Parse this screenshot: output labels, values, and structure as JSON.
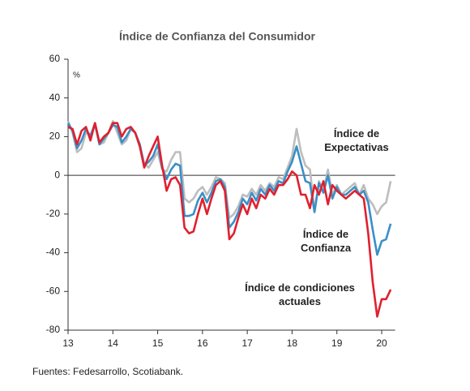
{
  "chart_data": {
    "type": "line",
    "title": "Índice de Confianza del Consumidor",
    "y_label": "%",
    "source": "Fuentes: Fedesarrollo, Scotiabank.",
    "xlim": [
      13,
      20.3
    ],
    "xticks": [
      13,
      14,
      15,
      16,
      17,
      18,
      19,
      20
    ],
    "ylim": [
      -80,
      60
    ],
    "yticks": [
      -80,
      -60,
      -40,
      -20,
      0,
      20,
      40,
      60
    ],
    "x": [
      13.0,
      13.1,
      13.2,
      13.3,
      13.4,
      13.5,
      13.6,
      13.7,
      13.8,
      13.9,
      14.0,
      14.1,
      14.2,
      14.3,
      14.4,
      14.5,
      14.6,
      14.7,
      14.8,
      14.9,
      15.0,
      15.1,
      15.2,
      15.3,
      15.4,
      15.5,
      15.6,
      15.7,
      15.8,
      15.9,
      16.0,
      16.1,
      16.2,
      16.3,
      16.4,
      16.5,
      16.6,
      16.7,
      16.8,
      16.9,
      17.0,
      17.1,
      17.2,
      17.3,
      17.4,
      17.5,
      17.6,
      17.7,
      17.8,
      17.9,
      18.0,
      18.1,
      18.2,
      18.3,
      18.4,
      18.5,
      18.6,
      18.7,
      18.8,
      18.9,
      19.0,
      19.1,
      19.2,
      19.3,
      19.4,
      19.5,
      19.6,
      19.7,
      19.8,
      19.9,
      20.0,
      20.1,
      20.2
    ],
    "series": [
      {
        "name": "Índice de Expectativas",
        "color": "#bdbdbd",
        "label": "Índice de\nExpectativas",
        "values": [
          28,
          22,
          12,
          14,
          22,
          21,
          26,
          16,
          17,
          22,
          28,
          22,
          16,
          18,
          24,
          22,
          16,
          6,
          4,
          8,
          12,
          3,
          2,
          8,
          12,
          12,
          -12,
          -14,
          -12,
          -8,
          -6,
          -10,
          -6,
          -1,
          -2,
          -4,
          -22,
          -20,
          -16,
          -10,
          -11,
          -7,
          -10,
          -5,
          -8,
          -4,
          -6,
          -1,
          -2,
          4,
          10,
          24,
          12,
          5,
          3,
          -18,
          -3,
          -8,
          3,
          -10,
          -5,
          -10,
          -8,
          -6,
          -4,
          -10,
          -5,
          -12,
          -15,
          -20,
          -16,
          -14,
          -3
        ]
      },
      {
        "name": "Índice de Confianza",
        "color": "#3a8fc8",
        "label": "Índice de\nConfianza",
        "values": [
          27,
          23,
          14,
          18,
          24,
          20,
          27,
          16,
          19,
          22,
          26,
          25,
          17,
          20,
          24,
          22,
          16,
          5,
          7,
          10,
          16,
          4,
          -2,
          3,
          6,
          5,
          -21,
          -21,
          -20,
          -13,
          -9,
          -14,
          -9,
          -3,
          -2,
          -6,
          -27,
          -24,
          -19,
          -12,
          -15,
          -9,
          -13,
          -7,
          -10,
          -5,
          -8,
          -3,
          -4,
          2,
          7,
          15,
          6,
          -3,
          -4,
          -19,
          -4,
          -9,
          0,
          -12,
          -6,
          -10,
          -10,
          -8,
          -6,
          -10,
          -8,
          -14,
          -28,
          -41,
          -34,
          -33,
          -25
        ]
      },
      {
        "name": "Índice de condiciones actuales",
        "color": "#e0202e",
        "label": "Índice de condiciones\nactuales",
        "values": [
          25,
          24,
          16,
          23,
          25,
          18,
          27,
          17,
          20,
          22,
          27,
          27,
          20,
          24,
          25,
          22,
          15,
          4,
          10,
          15,
          20,
          5,
          -8,
          -2,
          -1,
          -5,
          -27,
          -30,
          -29,
          -20,
          -12,
          -20,
          -12,
          -5,
          -3,
          -8,
          -33,
          -30,
          -22,
          -15,
          -20,
          -12,
          -17,
          -10,
          -12,
          -7,
          -10,
          -5,
          -5,
          -2,
          2,
          0,
          -10,
          -10,
          -17,
          -5,
          -10,
          -3,
          -15,
          -5,
          -8,
          -10,
          -12,
          -10,
          -8,
          -10,
          -12,
          -30,
          -55,
          -73,
          -64,
          -64,
          -59
        ]
      }
    ]
  }
}
